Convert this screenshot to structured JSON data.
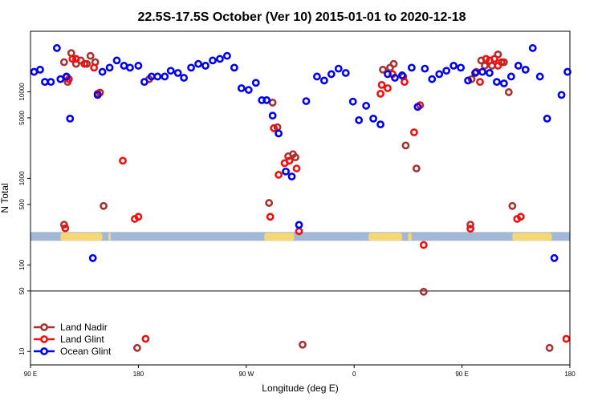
{
  "chart_data": {
    "type": "scatter",
    "title": "22.5S-17.5S October (Ver 10)   2015-01-01 to 2020-12-18",
    "xlabel": "Longitude (deg E)",
    "ylabel": "N Total",
    "x_ticks": [
      {
        "value": 90,
        "label": "90 E"
      },
      {
        "value": 180,
        "label": "180"
      },
      {
        "value": 270,
        "label": "90 W"
      },
      {
        "value": 360,
        "label": "0"
      },
      {
        "value": 450,
        "label": "90 E"
      },
      {
        "value": 540,
        "label": "180"
      }
    ],
    "y_ticks": [
      {
        "value": 10,
        "label": "10"
      },
      {
        "value": 50,
        "label": "50"
      },
      {
        "value": 100,
        "label": "100"
      },
      {
        "value": 500,
        "label": "500"
      },
      {
        "value": 1000,
        "label": "1000"
      },
      {
        "value": 5000,
        "label": "5000"
      },
      {
        "value": 10000,
        "label": "10000"
      }
    ],
    "xlim": [
      90,
      540
    ],
    "ylim_log": [
      7,
      50000
    ],
    "reference_line_y": 50,
    "land_band": {
      "y_low": 190,
      "y_high": 240,
      "ocean_color": "#a3b8d6",
      "land_color": "#f5d778"
    },
    "land_segments": [
      [
        115,
        150
      ],
      [
        155,
        157
      ],
      [
        285,
        310
      ],
      [
        372,
        400
      ],
      [
        405,
        408
      ],
      [
        492,
        525
      ]
    ],
    "legend_position": "bottom-left",
    "series": [
      {
        "name": "Land Nadir",
        "color": "#a83232",
        "points": [
          [
            118,
            292
          ],
          [
            118,
            22000
          ],
          [
            121,
            13000
          ],
          [
            124,
            28000
          ],
          [
            128,
            21000
          ],
          [
            132,
            23000
          ],
          [
            137,
            21000
          ],
          [
            140,
            26000
          ],
          [
            144,
            22000
          ],
          [
            148,
            9800
          ],
          [
            151,
            480
          ],
          [
            179,
            11
          ],
          [
            189,
            14000
          ],
          [
            289,
            520
          ],
          [
            292,
            7500
          ],
          [
            296,
            3900
          ],
          [
            305,
            1800
          ],
          [
            309,
            1900
          ],
          [
            311,
            1750
          ],
          [
            317,
            12
          ],
          [
            384,
            18000
          ],
          [
            390,
            19000
          ],
          [
            393,
            21000
          ],
          [
            401,
            15000
          ],
          [
            403,
            2400
          ],
          [
            412,
            1300
          ],
          [
            418,
            49
          ],
          [
            457,
            292
          ],
          [
            458,
            14000
          ],
          [
            462,
            17000
          ],
          [
            466,
            23000
          ],
          [
            469,
            20000
          ],
          [
            475,
            20000
          ],
          [
            480,
            27000
          ],
          [
            485,
            22000
          ],
          [
            489,
            9900
          ],
          [
            492,
            480
          ],
          [
            523,
            11
          ]
        ]
      },
      {
        "name": "Land Glint",
        "color": "#ee1111",
        "points": [
          [
            119,
            265
          ],
          [
            120,
            14800
          ],
          [
            122,
            14000
          ],
          [
            125,
            24000
          ],
          [
            128,
            24000
          ],
          [
            135,
            21000
          ],
          [
            143,
            19000
          ],
          [
            146,
            9500
          ],
          [
            167,
            1600
          ],
          [
            177,
            340
          ],
          [
            180,
            360
          ],
          [
            186,
            14
          ],
          [
            290,
            360
          ],
          [
            293,
            3800
          ],
          [
            297,
            1100
          ],
          [
            302,
            1500
          ],
          [
            306,
            1600
          ],
          [
            312,
            1300
          ],
          [
            314,
            245
          ],
          [
            382,
            9500
          ],
          [
            383,
            12000
          ],
          [
            388,
            11000
          ],
          [
            392,
            16000
          ],
          [
            402,
            13000
          ],
          [
            410,
            3400
          ],
          [
            415,
            7000
          ],
          [
            418,
            170
          ],
          [
            457,
            262
          ],
          [
            465,
            13000
          ],
          [
            470,
            24000
          ],
          [
            473,
            23000
          ],
          [
            477,
            24000
          ],
          [
            480,
            20000
          ],
          [
            483,
            22000
          ],
          [
            496,
            340
          ],
          [
            499,
            360
          ],
          [
            537,
            14
          ]
        ]
      },
      {
        "name": "Ocean Glint",
        "color": "#0000ee",
        "points": [
          [
            93,
            17000
          ],
          [
            98,
            18000
          ],
          [
            102,
            13000
          ],
          [
            107,
            13000
          ],
          [
            112,
            32000
          ],
          [
            115,
            14000
          ],
          [
            120,
            15000
          ],
          [
            123,
            4900
          ],
          [
            142,
            120
          ],
          [
            146,
            9200
          ],
          [
            150,
            17000
          ],
          [
            156,
            19000
          ],
          [
            162,
            23000
          ],
          [
            168,
            20000
          ],
          [
            173,
            19000
          ],
          [
            180,
            20000
          ],
          [
            185,
            13000
          ],
          [
            191,
            15000
          ],
          [
            196,
            15000
          ],
          [
            202,
            15000
          ],
          [
            207,
            17500
          ],
          [
            213,
            16500
          ],
          [
            218,
            14500
          ],
          [
            224,
            19000
          ],
          [
            230,
            21000
          ],
          [
            236,
            20000
          ],
          [
            242,
            23000
          ],
          [
            248,
            24000
          ],
          [
            254,
            26000
          ],
          [
            260,
            19000
          ],
          [
            266,
            11000
          ],
          [
            272,
            10500
          ],
          [
            278,
            12700
          ],
          [
            283,
            8000
          ],
          [
            287,
            8000
          ],
          [
            292,
            5300
          ],
          [
            297,
            3300
          ],
          [
            303,
            1200
          ],
          [
            308,
            1050
          ],
          [
            314,
            290
          ],
          [
            320,
            7800
          ],
          [
            329,
            15000
          ],
          [
            335,
            13500
          ],
          [
            341,
            16000
          ],
          [
            347,
            18500
          ],
          [
            353,
            16500
          ],
          [
            359,
            7700
          ],
          [
            364,
            4700
          ],
          [
            370,
            6900
          ],
          [
            376,
            4900
          ],
          [
            382,
            4200
          ],
          [
            388,
            16000
          ],
          [
            394,
            14500
          ],
          [
            400,
            15500
          ],
          [
            408,
            19000
          ],
          [
            413,
            6700
          ],
          [
            419,
            18500
          ],
          [
            425,
            14000
          ],
          [
            431,
            16000
          ],
          [
            437,
            17500
          ],
          [
            443,
            20000
          ],
          [
            449,
            19000
          ],
          [
            455,
            13500
          ],
          [
            461,
            16500
          ],
          [
            467,
            17000
          ],
          [
            473,
            16500
          ],
          [
            479,
            13000
          ],
          [
            485,
            12500
          ],
          [
            491,
            15000
          ],
          [
            497,
            20000
          ],
          [
            503,
            18000
          ],
          [
            509,
            32000
          ],
          [
            515,
            15000
          ],
          [
            521,
            4900
          ],
          [
            527,
            120
          ],
          [
            533,
            9200
          ],
          [
            538,
            17000
          ]
        ]
      }
    ]
  }
}
